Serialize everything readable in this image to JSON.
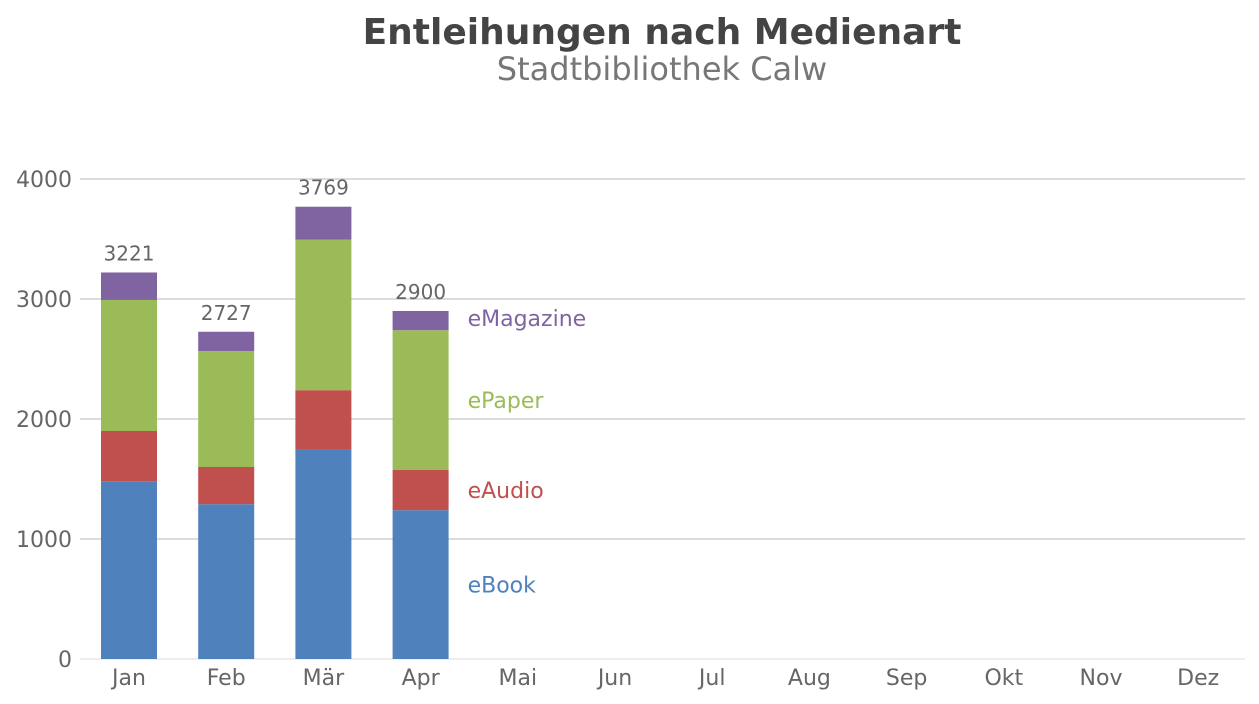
{
  "chart_data": {
    "type": "bar",
    "stacked": true,
    "title": "Entleihungen nach Medienart",
    "subtitle": "Stadtbibliothek Calw",
    "categories": [
      "Jan",
      "Feb",
      "Mär",
      "Apr",
      "Mai",
      "Jun",
      "Jul",
      "Aug",
      "Sep",
      "Okt",
      "Nov",
      "Dez"
    ],
    "series": [
      {
        "name": "eBook",
        "color": "#4f81bd",
        "values": [
          1482,
          1290,
          1745,
          1240,
          null,
          null,
          null,
          null,
          null,
          null,
          null,
          null
        ]
      },
      {
        "name": "eAudio",
        "color": "#c0504d",
        "values": [
          418,
          310,
          495,
          335,
          null,
          null,
          null,
          null,
          null,
          null,
          null,
          null
        ]
      },
      {
        "name": "ePaper",
        "color": "#9bbb59",
        "values": [
          1092,
          966,
          1255,
          1165,
          null,
          null,
          null,
          null,
          null,
          null,
          null,
          null
        ]
      },
      {
        "name": "eMagazine",
        "color": "#8064a2",
        "values": [
          229,
          161,
          274,
          160,
          null,
          null,
          null,
          null,
          null,
          null,
          null,
          null
        ]
      }
    ],
    "totals": [
      3221,
      2727,
      3769,
      2900,
      null,
      null,
      null,
      null,
      null,
      null,
      null,
      null
    ],
    "ylim": [
      0,
      4000
    ],
    "yticks": [
      0,
      1000,
      2000,
      3000,
      4000
    ],
    "grid": true,
    "legend": "inline-right-of-last-bar"
  }
}
